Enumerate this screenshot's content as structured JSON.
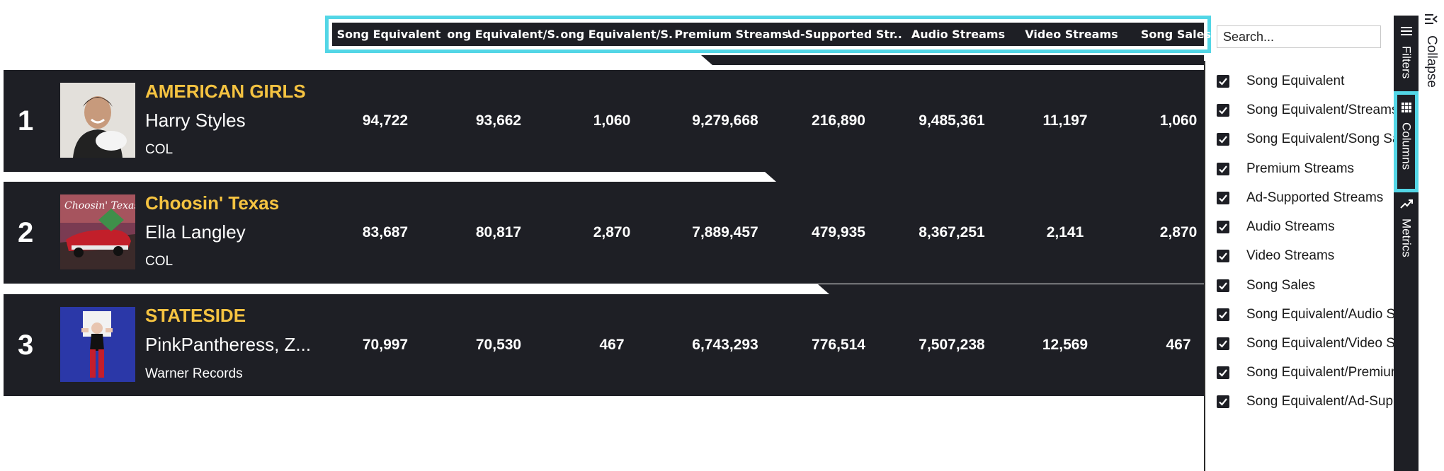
{
  "columns": [
    {
      "label": "Song Equivalent"
    },
    {
      "label": "Song Equivalent/S..."
    },
    {
      "label": "Song Equivalent/S..."
    },
    {
      "label": "Premium Streams"
    },
    {
      "label": "Ad-Supported Str..."
    },
    {
      "label": "Audio Streams"
    },
    {
      "label": "Video Streams"
    },
    {
      "label": "Song Sales"
    }
  ],
  "search": {
    "placeholder": "Search..."
  },
  "rows": [
    {
      "rank": "1",
      "title": "AMERICAN GIRLS",
      "artist": "Harry Styles",
      "label": "COL",
      "values": [
        "94,722",
        "93,662",
        "1,060",
        "9,279,668",
        "216,890",
        "9,485,361",
        "11,197",
        "1,060"
      ]
    },
    {
      "rank": "2",
      "title": "Choosin' Texas",
      "artist": "Ella Langley",
      "label": "COL",
      "values": [
        "83,687",
        "80,817",
        "2,870",
        "7,889,457",
        "479,935",
        "8,367,251",
        "2,141",
        "2,870"
      ]
    },
    {
      "rank": "3",
      "title": "STATESIDE",
      "artist": "PinkPantheress, Z...",
      "label": "Warner Records",
      "values": [
        "70,997",
        "70,530",
        "467",
        "6,743,293",
        "776,514",
        "7,507,238",
        "12,569",
        "467"
      ]
    }
  ],
  "panel": {
    "items": [
      {
        "label": "Song Equivalent",
        "checked": true
      },
      {
        "label": "Song Equivalent/Streams",
        "checked": true
      },
      {
        "label": "Song Equivalent/Song Sales",
        "checked": true
      },
      {
        "label": "Premium Streams",
        "checked": true
      },
      {
        "label": "Ad-Supported Streams",
        "checked": true
      },
      {
        "label": "Audio Streams",
        "checked": true
      },
      {
        "label": "Video Streams",
        "checked": true
      },
      {
        "label": "Song Sales",
        "checked": true
      },
      {
        "label": "Song Equivalent/Audio Streams",
        "checked": true
      },
      {
        "label": "Song Equivalent/Video Streams",
        "checked": true
      },
      {
        "label": "Song Equivalent/Premium Streams",
        "checked": true
      },
      {
        "label": "Song Equivalent/Ad-Supported Streams",
        "checked": true
      }
    ]
  },
  "side_tabs": {
    "filters": "Filters",
    "columns": "Columns",
    "metrics": "Metrics",
    "collapse": "Collapse"
  },
  "icons": {
    "filters": "hamburger-icon",
    "columns": "grid-icon",
    "metrics": "trend-icon",
    "collapse": "collapse-icon"
  },
  "colors": {
    "accent": "#53d6e6",
    "title": "#f5c341",
    "row_bg": "#1e1f25"
  }
}
